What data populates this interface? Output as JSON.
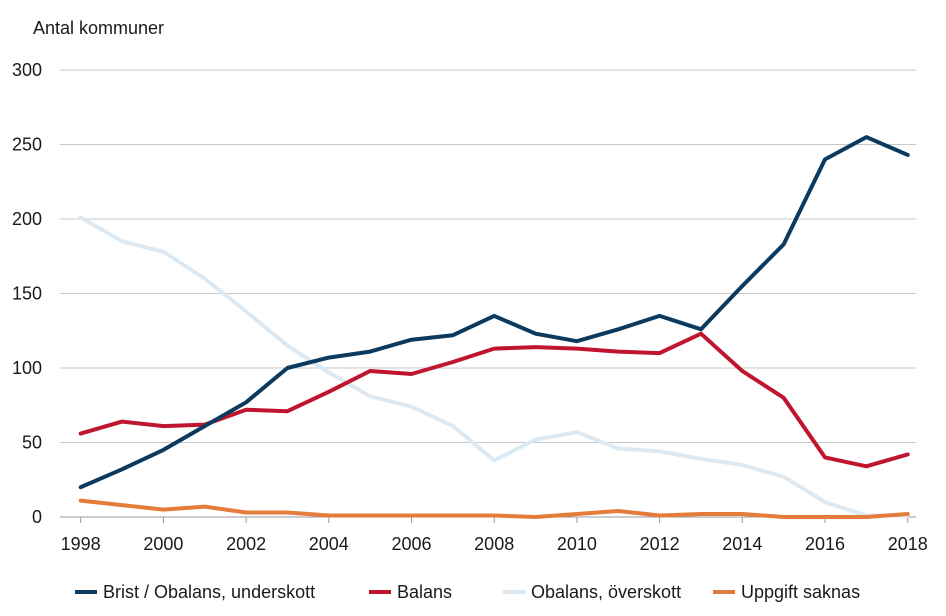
{
  "chart_data": {
    "type": "line",
    "title": "",
    "ylabel": "Antal kommuner",
    "xlabel": "",
    "ylim": [
      0,
      300
    ],
    "yticks": [
      0,
      50,
      100,
      150,
      200,
      250,
      300
    ],
    "xlim": [
      1997.5,
      2018.2
    ],
    "xticks": [
      1998,
      2000,
      2002,
      2004,
      2006,
      2008,
      2010,
      2012,
      2014,
      2016,
      2018
    ],
    "grid": true,
    "legend_position": "bottom",
    "x": [
      1998,
      1999,
      2000,
      2001,
      2002,
      2003,
      2004,
      2005,
      2006,
      2007,
      2008,
      2009,
      2010,
      2011,
      2012,
      2013,
      2014,
      2015,
      2016,
      2017,
      2018
    ],
    "series": [
      {
        "name": "Brist / Obalans, underskott",
        "color": "#0b3a5e",
        "values": [
          20,
          32,
          45,
          61,
          77,
          100,
          107,
          111,
          119,
          122,
          135,
          123,
          118,
          126,
          135,
          126,
          155,
          183,
          240,
          255,
          243
        ]
      },
      {
        "name": "Balans",
        "color": "#c0152f",
        "values": [
          56,
          64,
          61,
          62,
          72,
          71,
          84,
          98,
          96,
          104,
          113,
          114,
          113,
          111,
          110,
          123,
          98,
          80,
          40,
          34,
          42
        ]
      },
      {
        "name": "Obalans, överskott",
        "color": "#dde9f2",
        "values": [
          201,
          185,
          178,
          160,
          138,
          115,
          97,
          81,
          74,
          61,
          38,
          52,
          57,
          46,
          44,
          39,
          35,
          27,
          10,
          1,
          1
        ]
      },
      {
        "name": "Uppgift saknas",
        "color": "#e67c3c",
        "values": [
          11,
          8,
          5,
          7,
          3,
          3,
          1,
          1,
          1,
          1,
          1,
          0,
          2,
          4,
          1,
          2,
          2,
          0,
          0,
          0,
          2
        ]
      }
    ]
  }
}
